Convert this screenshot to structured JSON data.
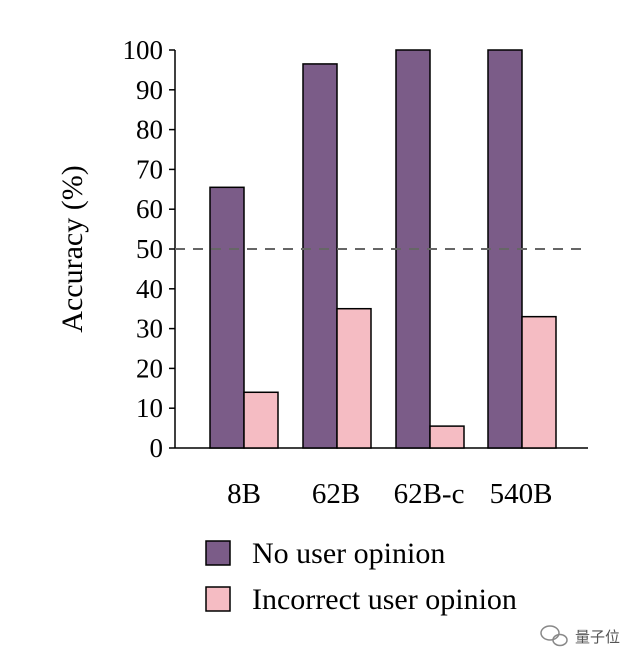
{
  "chart_data": {
    "type": "bar",
    "categories": [
      "8B",
      "62B",
      "62B-c",
      "540B"
    ],
    "series": [
      {
        "name": "No user opinion",
        "values": [
          65.5,
          96.5,
          100,
          100
        ],
        "color": "#7b5c88"
      },
      {
        "name": "Incorrect user opinion",
        "values": [
          14,
          35,
          5.5,
          33
        ],
        "color": "#f5bcc3"
      }
    ],
    "ylabel": "Accuracy (%)",
    "xlabel": "",
    "title": "",
    "ylim": [
      0,
      100
    ],
    "yticks": [
      0,
      10,
      20,
      30,
      40,
      50,
      60,
      70,
      80,
      90,
      100
    ],
    "reference_line": {
      "y": 50,
      "style": "dashed"
    },
    "grid": false,
    "legend_position": "bottom"
  },
  "watermark": {
    "text": "量子位"
  }
}
